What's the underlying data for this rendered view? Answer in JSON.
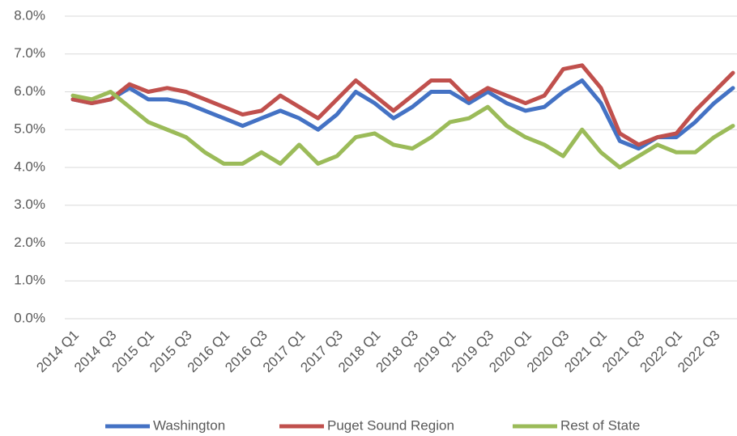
{
  "chart_data": {
    "type": "line",
    "categories": [
      "2014 Q1",
      null,
      "2014 Q3",
      null,
      "2015 Q1",
      null,
      "2015 Q3",
      null,
      "2016 Q1",
      null,
      "2016 Q3",
      null,
      "2017 Q1",
      null,
      "2017 Q3",
      null,
      "2018 Q1",
      null,
      "2018 Q3",
      null,
      "2019 Q1",
      null,
      "2019 Q3",
      null,
      "2020 Q1",
      null,
      "2020 Q3",
      null,
      "2021 Q1",
      null,
      "2021 Q3",
      null,
      "2022 Q1",
      null,
      "2022 Q3",
      null
    ],
    "series": [
      {
        "name": "Washington",
        "color": "#4472c4",
        "values": [
          5.8,
          5.7,
          5.8,
          6.1,
          5.8,
          5.8,
          5.7,
          5.5,
          5.3,
          5.1,
          5.3,
          5.5,
          5.3,
          5.0,
          5.4,
          6.0,
          5.7,
          5.3,
          5.6,
          6.0,
          6.0,
          5.7,
          6.0,
          5.7,
          5.5,
          5.6,
          6.0,
          6.3,
          5.7,
          4.7,
          4.5,
          4.8,
          4.8,
          5.2,
          5.7,
          6.1
        ]
      },
      {
        "name": "Puget Sound Region",
        "color": "#c0504d",
        "values": [
          5.8,
          5.7,
          5.8,
          6.2,
          6.0,
          6.1,
          6.0,
          5.8,
          5.6,
          5.4,
          5.5,
          5.9,
          5.6,
          5.3,
          5.8,
          6.3,
          5.9,
          5.5,
          5.9,
          6.3,
          6.3,
          5.8,
          6.1,
          5.9,
          5.7,
          5.9,
          6.6,
          6.7,
          6.1,
          4.9,
          4.6,
          4.8,
          4.9,
          5.5,
          6.0,
          6.5
        ]
      },
      {
        "name": "Rest of State",
        "color": "#9bbb59",
        "values": [
          5.9,
          5.8,
          6.0,
          5.6,
          5.2,
          5.0,
          4.8,
          4.4,
          4.1,
          4.1,
          4.4,
          4.1,
          4.6,
          4.1,
          4.3,
          4.8,
          4.9,
          4.6,
          4.5,
          4.8,
          5.2,
          5.3,
          5.6,
          5.1,
          4.8,
          4.6,
          4.3,
          5.0,
          4.4,
          4.0,
          4.3,
          4.6,
          4.4,
          4.4,
          4.8,
          5.1
        ]
      }
    ],
    "ylim": [
      0,
      8
    ],
    "yticks": [
      {
        "value": 0,
        "label": "0.0%"
      },
      {
        "value": 1,
        "label": "1.0%"
      },
      {
        "value": 2,
        "label": "2.0%"
      },
      {
        "value": 3,
        "label": "3.0%"
      },
      {
        "value": 4,
        "label": "4.0%"
      },
      {
        "value": 5,
        "label": "5.0%"
      },
      {
        "value": 6,
        "label": "6.0%"
      },
      {
        "value": 7,
        "label": "7.0%"
      },
      {
        "value": 8,
        "label": "8.0%"
      }
    ],
    "grid": true,
    "legend": "bottom"
  }
}
